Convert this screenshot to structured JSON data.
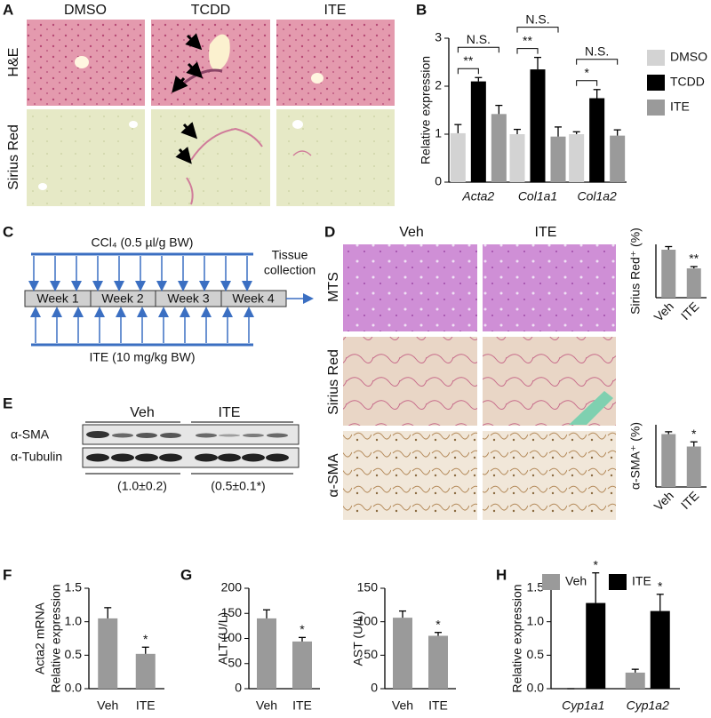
{
  "panel_labels": [
    "A",
    "B",
    "C",
    "D",
    "E",
    "F",
    "G",
    "H"
  ],
  "panel_a": {
    "columns": [
      "DMSO",
      "TCDD",
      "ITE"
    ],
    "rows": [
      "H&E",
      "Sirius Red"
    ]
  },
  "panel_c": {
    "top_treatment": "CCl₄ (0.5 µl/g BW)",
    "weeks": [
      "Week 1",
      "Week 2",
      "Week 3",
      "Week 4"
    ],
    "endpoint": [
      "Tissue",
      "collection"
    ],
    "bottom_treatment": "ITE (10 mg/kg BW)"
  },
  "panel_d": {
    "columns": [
      "Veh",
      "ITE"
    ],
    "rows": [
      "MTS",
      "Sirius Red",
      "α-SMA"
    ]
  },
  "panel_e": {
    "groups": [
      "Veh",
      "ITE"
    ],
    "bands": [
      "α-SMA",
      "α-Tubulin"
    ],
    "quantification": [
      "(1.0±0.2)",
      "(0.5±0.1*)"
    ]
  },
  "chart_data": [
    {
      "type": "bar",
      "ylabel": "Relative expression",
      "categories": [
        "Acta2",
        "Col1a1",
        "Col1a2"
      ],
      "series": [
        {
          "name": "DMSO",
          "color": "#d3d3d3",
          "values": [
            1.02,
            1.0,
            1.0
          ],
          "errors": [
            0.18,
            0.1,
            0.05
          ]
        },
        {
          "name": "TCDD",
          "color": "#000000",
          "values": [
            2.1,
            2.35,
            1.75
          ],
          "errors": [
            0.08,
            0.25,
            0.18
          ]
        },
        {
          "name": "ITE",
          "color": "#9a9a9a",
          "values": [
            1.42,
            0.95,
            0.97
          ],
          "errors": [
            0.18,
            0.2,
            0.12
          ]
        }
      ],
      "brackets": [
        [
          "**",
          "N.S."
        ],
        [
          "**",
          "N.S."
        ],
        [
          "*",
          "N.S."
        ]
      ],
      "ylim": [
        0,
        3
      ],
      "yticks": [
        0,
        1,
        2,
        3
      ],
      "legend": "right"
    },
    {
      "type": "bar",
      "ylabel": "Sirius Red⁺ (%)",
      "categories": [
        "Veh",
        "ITE"
      ],
      "color": "#9a9a9a",
      "values": [
        5.4,
        3.3
      ],
      "errors": [
        0.35,
        0.2
      ],
      "significance": [
        null,
        "**"
      ],
      "ylim": [
        0,
        6
      ]
    },
    {
      "type": "bar",
      "ylabel": "α-SMA⁺ (%)",
      "categories": [
        "Veh",
        "ITE"
      ],
      "color": "#9a9a9a",
      "values": [
        6.8,
        5.2
      ],
      "errors": [
        0.3,
        0.6
      ],
      "significance": [
        null,
        "*"
      ],
      "ylim": [
        0,
        8
      ]
    },
    {
      "type": "bar",
      "ylabel": [
        "Acta2 mRNA",
        "Relative expression"
      ],
      "categories": [
        "Veh",
        "ITE"
      ],
      "color": "#9a9a9a",
      "values": [
        1.05,
        0.52
      ],
      "errors": [
        0.16,
        0.1
      ],
      "significance": [
        null,
        "*"
      ],
      "ylim": [
        0,
        1.5
      ],
      "yticks": [
        {
          "value": 0,
          "label": "0.0"
        },
        {
          "value": 0.5,
          "label": "0.5"
        },
        {
          "value": 1,
          "label": "1.0"
        },
        {
          "value": 1.5,
          "label": "1.5"
        }
      ]
    },
    {
      "type": "bar",
      "ylabel": "ALT (U/L)",
      "categories": [
        "Veh",
        "ITE"
      ],
      "color": "#9a9a9a",
      "values": [
        140,
        94
      ],
      "errors": [
        17,
        8
      ],
      "significance": [
        null,
        "*"
      ],
      "ylim": [
        0,
        200
      ],
      "yticks": [
        0,
        50,
        100,
        150,
        200
      ]
    },
    {
      "type": "bar",
      "ylabel": "AST (U/L)",
      "categories": [
        "Veh",
        "ITE"
      ],
      "color": "#9a9a9a",
      "values": [
        106,
        79
      ],
      "errors": [
        10,
        5
      ],
      "significance": [
        null,
        "*"
      ],
      "ylim": [
        0,
        150
      ],
      "yticks": [
        0,
        50,
        100,
        150
      ]
    },
    {
      "type": "bar",
      "ylabel": "Relative expression",
      "categories": [
        "Cyp1a1",
        "Cyp1a2"
      ],
      "series": [
        {
          "name": "Veh",
          "color": "#9a9a9a",
          "values": [
            0,
            0.24
          ],
          "errors": [
            0,
            0.05
          ],
          "significance": [
            null,
            null
          ]
        },
        {
          "name": "ITE",
          "color": "#000000",
          "values": [
            1.28,
            1.16
          ],
          "errors": [
            0.45,
            0.25
          ],
          "significance": [
            "*",
            "*"
          ]
        }
      ],
      "ylim": [
        0,
        1.5
      ],
      "legend": "top",
      "yticks": [
        {
          "value": 0,
          "label": "0.0"
        },
        {
          "value": 0.5,
          "label": "0.5"
        },
        {
          "value": 1,
          "label": "1.0"
        },
        {
          "value": 1.5,
          "label": "1.5"
        }
      ]
    }
  ]
}
